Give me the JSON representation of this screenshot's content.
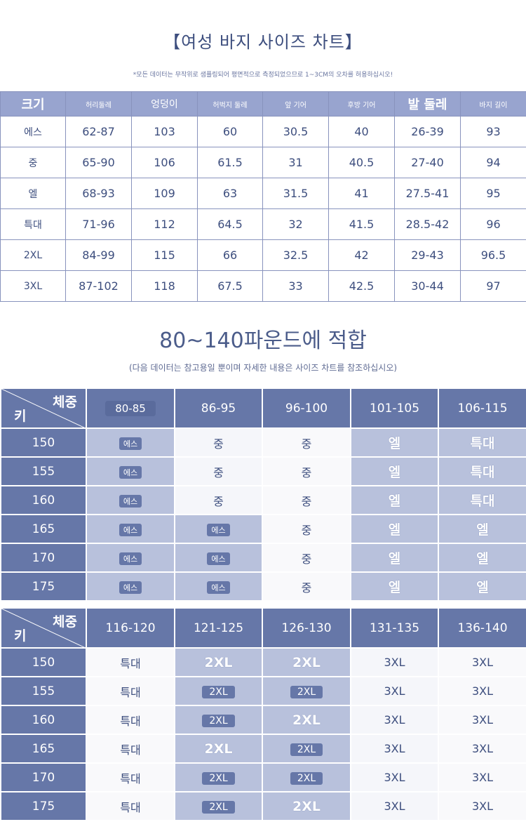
{
  "title": "【여성 바지 사이즈 차트】",
  "note": "*모든 데이터는 무작위로 샘플링되어 평면적으로 측정되었으므로 1~3CM의 오차를 허용하십시오!",
  "size_table": {
    "headers": [
      "크기",
      "허리둘레",
      "엉덩이",
      "허벅지 둘레",
      "앞 기어",
      "후방 기어",
      "발 둘레",
      "바지 길이"
    ],
    "rows": [
      [
        "에스",
        "62-87",
        "103",
        "60",
        "30.5",
        "40",
        "26-39",
        "93"
      ],
      [
        "중",
        "65-90",
        "106",
        "61.5",
        "31",
        "40.5",
        "27-40",
        "94"
      ],
      [
        "엘",
        "68-93",
        "109",
        "63",
        "31.5",
        "41",
        "27.5-41",
        "95"
      ],
      [
        "특대",
        "71-96",
        "112",
        "64.5",
        "32",
        "41.5",
        "28.5-42",
        "96"
      ],
      [
        "2XL",
        "84-99",
        "115",
        "66",
        "32.5",
        "42",
        "29-43",
        "96.5"
      ],
      [
        "3XL",
        "87-102",
        "118",
        "67.5",
        "33",
        "42.5",
        "30-44",
        "97"
      ]
    ]
  },
  "subtitle": "80~140파운드에 적합",
  "subnote": "(다음 데이터는 참고용일 뿐이며 자세한 내용은 사이즈 차트를 참조하십시오)",
  "weight_label": "체중",
  "height_label": "키",
  "weight_table_1": {
    "columns": [
      "80-85",
      "86-95",
      "96-100",
      "101-105",
      "106-115"
    ],
    "rows": [
      {
        "height": "150",
        "cells": [
          "에스",
          "중",
          "중",
          "엘",
          "특대"
        ]
      },
      {
        "height": "155",
        "cells": [
          "에스",
          "중",
          "중",
          "엘",
          "특대"
        ]
      },
      {
        "height": "160",
        "cells": [
          "에스",
          "중",
          "중",
          "엘",
          "특대"
        ]
      },
      {
        "height": "165",
        "cells": [
          "에스",
          "에스",
          "중",
          "엘",
          "엘"
        ]
      },
      {
        "height": "170",
        "cells": [
          "에스",
          "에스",
          "중",
          "엘",
          "엘"
        ]
      },
      {
        "height": "175",
        "cells": [
          "에스",
          "에스",
          "중",
          "엘",
          "엘"
        ]
      }
    ]
  },
  "weight_table_2": {
    "columns": [
      "116-120",
      "121-125",
      "126-130",
      "131-135",
      "136-140"
    ],
    "rows": [
      {
        "height": "150",
        "cells": [
          "특대",
          "2XL",
          "2XL",
          "3XL",
          "3XL"
        ]
      },
      {
        "height": "155",
        "cells": [
          "특대",
          "2XL",
          "2XL",
          "3XL",
          "3XL"
        ]
      },
      {
        "height": "160",
        "cells": [
          "특대",
          "2XL",
          "2XL",
          "3XL",
          "3XL"
        ]
      },
      {
        "height": "165",
        "cells": [
          "특대",
          "2XL",
          "2XL",
          "3XL",
          "3XL"
        ]
      },
      {
        "height": "170",
        "cells": [
          "특대",
          "2XL",
          "2XL",
          "3XL",
          "3XL"
        ]
      },
      {
        "height": "175",
        "cells": [
          "특대",
          "2XL",
          "2XL",
          "3XL",
          "3XL"
        ]
      }
    ]
  }
}
